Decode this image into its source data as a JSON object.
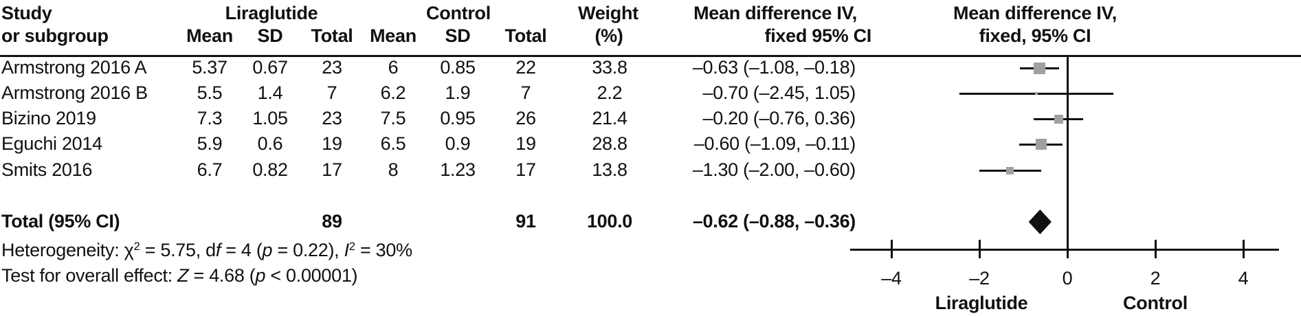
{
  "header": {
    "study_line1": "Study",
    "study_line2": "or subgroup",
    "group_liraglutide": "Liraglutide",
    "group_control": "Control",
    "mean1": "Mean",
    "sd1": "SD",
    "total1": "Total",
    "mean2": "Mean",
    "sd2": "SD",
    "total2": "Total",
    "weight_line1": "Weight",
    "weight_line2": "(%)",
    "md_text_line1": "Mean difference IV,",
    "md_text_line2": "fixed 95% CI",
    "md_plot_line1": "Mean difference IV,",
    "md_plot_line2": "fixed, 95% CI"
  },
  "rows": [
    {
      "study": "Armstrong 2016 A",
      "mean1": "5.37",
      "sd1": "0.67",
      "total1": "23",
      "mean2": "6",
      "sd2": "0.85",
      "total2": "22",
      "weight": "33.8",
      "ci": "–0.63 (–1.08, –0.18)"
    },
    {
      "study": "Armstrong 2016 B",
      "mean1": "5.5",
      "sd1": "1.4",
      "total1": "7",
      "mean2": "6.2",
      "sd2": "1.9",
      "total2": "7",
      "weight": "2.2",
      "ci": "–0.70 (–2.45, 1.05)"
    },
    {
      "study": "Bizino 2019",
      "mean1": "7.3",
      "sd1": "1.05",
      "total1": "23",
      "mean2": "7.5",
      "sd2": "0.95",
      "total2": "26",
      "weight": "21.4",
      "ci": "–0.20 (–0.76, 0.36)"
    },
    {
      "study": "Eguchi 2014",
      "mean1": "5.9",
      "sd1": "0.6",
      "total1": "19",
      "mean2": "6.5",
      "sd2": "0.9",
      "total2": "19",
      "weight": "28.8",
      "ci": "–0.60 (–1.09, –0.11)"
    },
    {
      "study": "Smits 2016",
      "mean1": "6.7",
      "sd1": "0.82",
      "total1": "17",
      "mean2": "8",
      "sd2": "1.23",
      "total2": "17",
      "weight": "13.8",
      "ci": "–1.30 (–2.00, –0.60)"
    }
  ],
  "total_row": {
    "label": "Total (95% CI)",
    "total1": "89",
    "total2": "91",
    "weight": "100.0",
    "ci": "–0.62 (–0.88, –0.36)"
  },
  "footnotes": {
    "heterogeneity": [
      {
        "t": "Heterogeneity: χ"
      },
      {
        "t": "2",
        "sup": true
      },
      {
        "t": " = 5.75, d"
      },
      {
        "t": "f",
        "it": true
      },
      {
        "t": " = 4 ("
      },
      {
        "t": "p",
        "it": true
      },
      {
        "t": " = 0.22), "
      },
      {
        "t": "I",
        "it": true
      },
      {
        "t": "2",
        "sup": true
      },
      {
        "t": " = 30%"
      }
    ],
    "overall_effect": [
      {
        "t": "Test for overall effect: "
      },
      {
        "t": "Z",
        "it": true
      },
      {
        "t": " = 4.68 ("
      },
      {
        "t": "p",
        "it": true
      },
      {
        "t": " < 0.00001)"
      }
    ]
  },
  "axis": {
    "tick_labels": [
      "–4",
      "–2",
      "0",
      "2",
      "4"
    ],
    "left_label": "Liraglutide",
    "right_label": "Control"
  },
  "chart_data": {
    "type": "forest",
    "title": "Mean difference IV, fixed, 95% CI",
    "x_ticks": [
      -4,
      -2,
      0,
      2,
      4
    ],
    "xlim": [
      -4.95,
      4.8
    ],
    "x_label_left": "Liraglutide",
    "x_label_right": "Control",
    "marker_color": "#a1a1a1",
    "line_color": "#111111",
    "studies": [
      {
        "name": "Armstrong 2016 A",
        "md": -0.63,
        "ci_low": -1.08,
        "ci_high": -0.18,
        "weight": 33.8
      },
      {
        "name": "Armstrong 2016 B",
        "md": -0.7,
        "ci_low": -2.45,
        "ci_high": 1.05,
        "weight": 2.2
      },
      {
        "name": "Bizino 2019",
        "md": -0.2,
        "ci_low": -0.76,
        "ci_high": 0.36,
        "weight": 21.4
      },
      {
        "name": "Eguchi 2014",
        "md": -0.6,
        "ci_low": -1.09,
        "ci_high": -0.11,
        "weight": 28.8
      },
      {
        "name": "Smits 2016",
        "md": -1.3,
        "ci_low": -2.0,
        "ci_high": -0.6,
        "weight": 13.8
      }
    ],
    "total": {
      "md": -0.62,
      "ci_low": -0.88,
      "ci_high": -0.36,
      "weight": 100.0
    }
  }
}
